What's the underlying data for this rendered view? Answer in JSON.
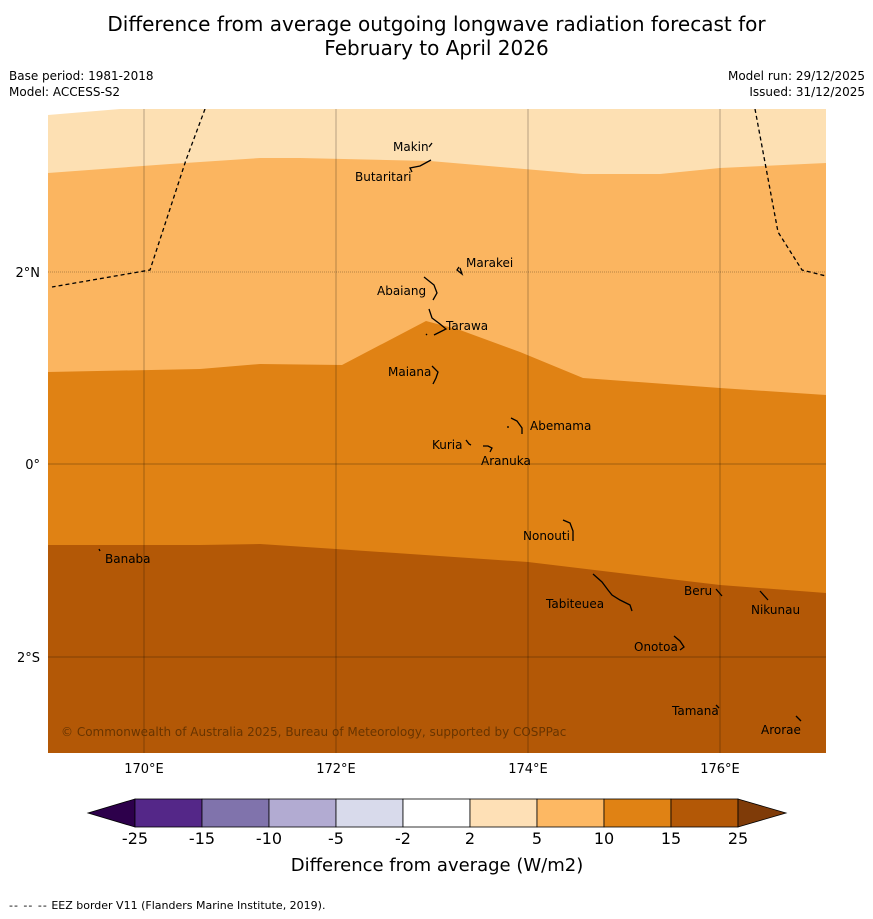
{
  "title_line1": "Difference from average outgoing longwave radiation forecast for",
  "title_line2": "February to April 2026",
  "base_period": "Base period: 1981-2018",
  "model": "Model: ACCESS-S2",
  "model_run": "Model run: 29/12/2025",
  "issued": "Issued: 31/12/2025",
  "copyright": "© Commonwealth of Australia 2025, Bureau of Meteorology, supported by COSPPac",
  "footer_dash": "-- -- --",
  "footer_text": "EEZ border V11 (Flanders Marine Institute, 2019).",
  "map": {
    "lat_ticks": [
      "2°N",
      "0°",
      "2°S"
    ],
    "lon_ticks": [
      "170°E",
      "172°E",
      "174°E",
      "176°E"
    ],
    "islands": [
      "Makin",
      "Butaritari",
      "Marakei",
      "Abaiang",
      "Tarawa",
      "Maiana",
      "Abemama",
      "Kuria",
      "Aranuka",
      "Nonouti",
      "Banaba",
      "Tabiteuea",
      "Beru",
      "Nikunau",
      "Onotoa",
      "Tamana",
      "Arorae"
    ],
    "band_colors": [
      "#fde0b3",
      "#fbb560",
      "#e08214",
      "#b35806"
    ]
  },
  "colorbar": {
    "label": "Difference from average (W/m2)",
    "ticks": [
      "-25",
      "-15",
      "-10",
      "-5",
      "-2",
      "2",
      "5",
      "10",
      "15",
      "25"
    ],
    "colors": [
      "#2d004b",
      "#542788",
      "#8073ac",
      "#b2abd2",
      "#d8daeb",
      "#ffffff",
      "#fee0b6",
      "#fdb863",
      "#e08214",
      "#b35806",
      "#7f3b08"
    ]
  }
}
